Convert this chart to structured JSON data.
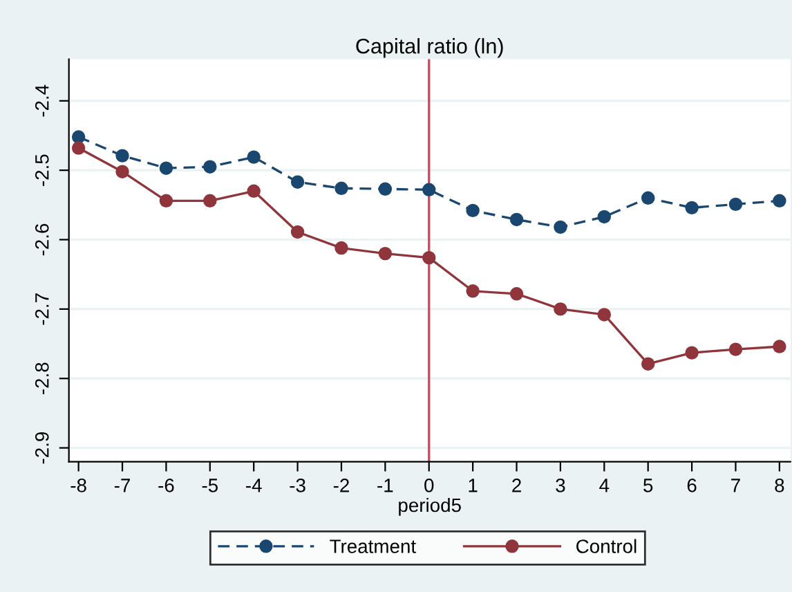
{
  "chart_data": {
    "type": "line",
    "title": "Capital ratio (ln)",
    "xlabel": "period5",
    "x": [
      -8,
      -7,
      -6,
      -5,
      -4,
      -3,
      -2,
      -1,
      0,
      1,
      2,
      3,
      4,
      5,
      6,
      7,
      8
    ],
    "series": [
      {
        "name": "Treatment",
        "color": "#1a476f",
        "line_style": "dashed",
        "values": [
          -2.452,
          -2.479,
          -2.497,
          -2.495,
          -2.481,
          -2.517,
          -2.526,
          -2.527,
          -2.528,
          -2.558,
          -2.571,
          -2.582,
          -2.567,
          -2.54,
          -2.554,
          -2.549,
          -2.544
        ]
      },
      {
        "name": "Control",
        "color": "#90353b",
        "line_style": "solid",
        "values": [
          -2.468,
          -2.502,
          -2.544,
          -2.544,
          -2.53,
          -2.589,
          -2.612,
          -2.62,
          -2.626,
          -2.674,
          -2.678,
          -2.7,
          -2.708,
          -2.779,
          -2.763,
          -2.758,
          -2.754
        ]
      }
    ],
    "marker": "circle",
    "xlim": [
      -8.22,
      8.25
    ],
    "ylim": [
      -2.92,
      -2.34
    ],
    "xticks": [
      -8,
      -7,
      -6,
      -5,
      -4,
      -3,
      -2,
      -1,
      0,
      1,
      2,
      3,
      4,
      5,
      6,
      7,
      8
    ],
    "yticks": [
      -2.4,
      -2.5,
      -2.6,
      -2.7,
      -2.8,
      -2.9
    ],
    "grid": "y",
    "legend": "bottom",
    "ref_lines": [
      {
        "axis": "x",
        "value": 0,
        "color": "#d0485e"
      }
    ]
  }
}
